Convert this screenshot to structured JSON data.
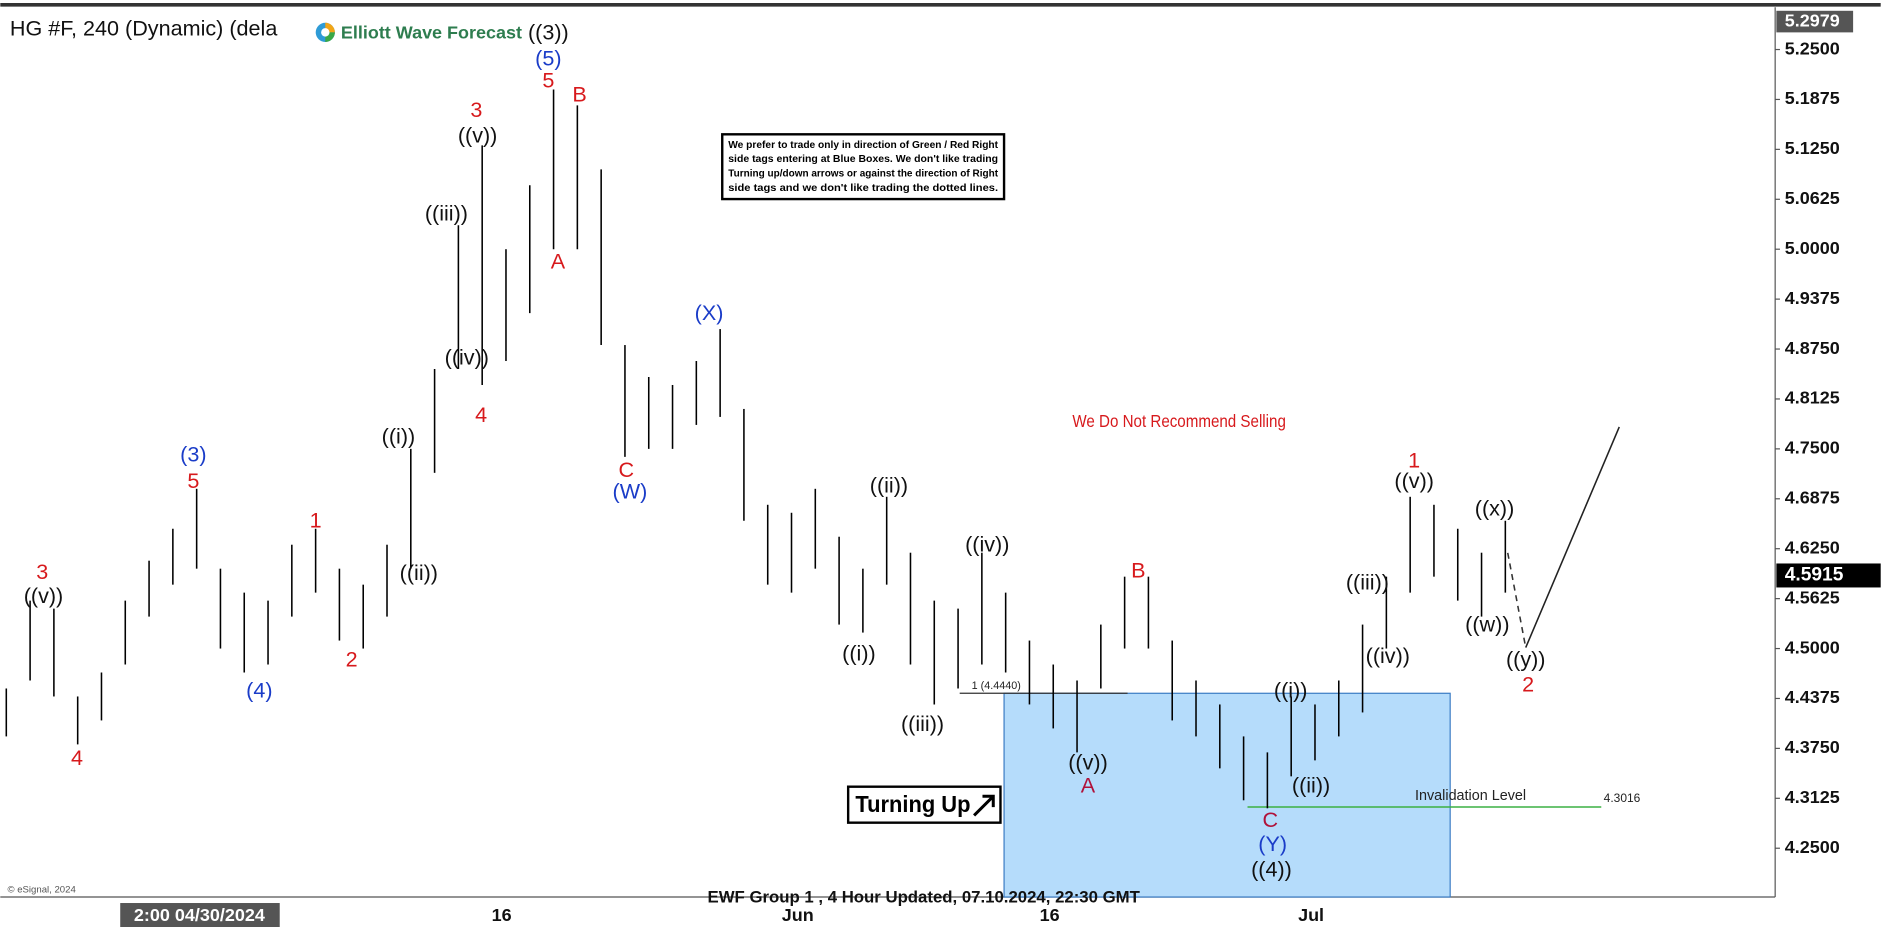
{
  "chart_data": {
    "type": "ohlc",
    "title": "HG #F, 240 (Dynamic) (dela",
    "logo": "Elliott Wave Forecast",
    "footer": "EWF Group 1 , 4 Hour Updated, 07.10.2024, 22:30 GMT",
    "copyright": "© eSignal, 2024",
    "cursor_date": "2:00 04/30/2024",
    "xtick_labels": [
      "16",
      "Jun",
      "16",
      "Jul"
    ],
    "ylim": [
      4.1889,
      5.3
    ],
    "yticks": [
      {
        "value": 5.25,
        "label": "5.2500"
      },
      {
        "value": 5.1875,
        "label": "5.1875"
      },
      {
        "value": 5.125,
        "label": "5.1250"
      },
      {
        "value": 5.0625,
        "label": "5.0625"
      },
      {
        "value": 5.0,
        "label": "5.0000"
      },
      {
        "value": 4.9375,
        "label": "4.9375"
      },
      {
        "value": 4.875,
        "label": "4.8750"
      },
      {
        "value": 4.8125,
        "label": "4.8125"
      },
      {
        "value": 4.75,
        "label": "4.7500"
      },
      {
        "value": 4.6875,
        "label": "4.6875"
      },
      {
        "value": 4.625,
        "label": "4.6250"
      },
      {
        "value": 4.5625,
        "label": "4.5625"
      },
      {
        "value": 4.5,
        "label": "4.5000"
      },
      {
        "value": 4.4375,
        "label": "4.4375"
      },
      {
        "value": 4.375,
        "label": "4.3750"
      },
      {
        "value": 4.3125,
        "label": "4.3125"
      },
      {
        "value": 4.25,
        "label": "4.2500"
      }
    ],
    "bar_color": "#000000",
    "highs": [
      4.45,
      4.56,
      4.55,
      4.44,
      4.47,
      4.56,
      4.61,
      4.65,
      4.7,
      4.6,
      4.57,
      4.56,
      4.63,
      4.65,
      4.6,
      4.58,
      4.63,
      4.75,
      4.85,
      5.03,
      5.13,
      5.0,
      5.08,
      5.2,
      5.18,
      5.1,
      4.88,
      4.84,
      4.83,
      4.86,
      4.9,
      4.8,
      4.68,
      4.67,
      4.7,
      4.64,
      4.6,
      4.69,
      4.62,
      4.56,
      4.55,
      4.62,
      4.57,
      4.51,
      4.48,
      4.46,
      4.53,
      4.59,
      4.59,
      4.51,
      4.46,
      4.43,
      4.39,
      4.37,
      4.44,
      4.43,
      4.46,
      4.53,
      4.59,
      4.69,
      4.68,
      4.65,
      4.62,
      4.66
    ],
    "lows": [
      4.39,
      4.46,
      4.44,
      4.38,
      4.41,
      4.48,
      4.54,
      4.58,
      4.6,
      4.5,
      4.47,
      4.48,
      4.54,
      4.57,
      4.51,
      4.5,
      4.54,
      4.6,
      4.72,
      4.85,
      4.83,
      4.86,
      4.92,
      5.0,
      5.0,
      4.88,
      4.74,
      4.75,
      4.75,
      4.78,
      4.79,
      4.66,
      4.58,
      4.57,
      4.6,
      4.53,
      4.52,
      4.58,
      4.48,
      4.43,
      4.45,
      4.48,
      4.47,
      4.43,
      4.4,
      4.37,
      4.45,
      4.5,
      4.5,
      4.41,
      4.39,
      4.35,
      4.31,
      4.3,
      4.34,
      4.36,
      4.39,
      4.42,
      4.5,
      4.57,
      4.59,
      4.56,
      4.54,
      4.57
    ],
    "high_price": 5.2979,
    "last_price": 4.5915,
    "blue_box": {
      "top": 4.444,
      "label": "1 (4.4440)",
      "color": "#b5dcfb"
    },
    "invalidation": {
      "value": 4.3016,
      "label": "Invalidation Level",
      "color": "#3cb043"
    },
    "note_lines": [
      "We prefer to trade only in direction of Green / Red Right",
      "side tags entering at Blue Boxes. We don't like trading",
      "Turning up/down arrows or against the direction of Right",
      "side tags and we don't like trading the dotted lines."
    ],
    "warning": "We Do Not Recommend Selling",
    "turning_label": "Turning Up",
    "wave_labels": [
      {
        "text": "3",
        "color": "#d7191c"
      },
      {
        "text": "((v))",
        "color": "#111111"
      },
      {
        "text": "4",
        "color": "#d7191c"
      },
      {
        "text": "(3)",
        "color": "#1a3cc8"
      },
      {
        "text": "5",
        "color": "#d7191c"
      },
      {
        "text": "(4)",
        "color": "#1a3cc8"
      },
      {
        "text": "1",
        "color": "#d7191c"
      },
      {
        "text": "2",
        "color": "#d7191c"
      },
      {
        "text": "((i))",
        "color": "#111111"
      },
      {
        "text": "((ii))",
        "color": "#111111"
      },
      {
        "text": "((iii))",
        "color": "#111111"
      },
      {
        "text": "((iv))",
        "color": "#111111"
      },
      {
        "text": "3",
        "color": "#d7191c"
      },
      {
        "text": "((v))",
        "color": "#111111"
      },
      {
        "text": "4",
        "color": "#d7191c"
      },
      {
        "text": "(5)",
        "color": "#1a3cc8"
      },
      {
        "text": "5",
        "color": "#d7191c"
      },
      {
        "text": "((3))",
        "color": "#111111"
      },
      {
        "text": "B",
        "color": "#d7191c"
      },
      {
        "text": "A",
        "color": "#d7191c"
      },
      {
        "text": "C",
        "color": "#d7191c"
      },
      {
        "text": "(W)",
        "color": "#1a3cc8"
      },
      {
        "text": "(X)",
        "color": "#1a3cc8"
      },
      {
        "text": "((ii))",
        "color": "#111111"
      },
      {
        "text": "((i))",
        "color": "#111111"
      },
      {
        "text": "((iii))",
        "color": "#111111"
      },
      {
        "text": "((iv))",
        "color": "#111111"
      },
      {
        "text": "((v))",
        "color": "#111111"
      },
      {
        "text": "A",
        "color": "#b0123a"
      },
      {
        "text": "B",
        "color": "#d7191c"
      },
      {
        "text": "C",
        "color": "#b0123a"
      },
      {
        "text": "(Y)",
        "color": "#1a3cc8"
      },
      {
        "text": "((4))",
        "color": "#111111"
      },
      {
        "text": "((i))",
        "color": "#111111"
      },
      {
        "text": "((ii))",
        "color": "#111111"
      },
      {
        "text": "((iii))",
        "color": "#111111"
      },
      {
        "text": "((iv))",
        "color": "#111111"
      },
      {
        "text": "1",
        "color": "#d7191c"
      },
      {
        "text": "((v))",
        "color": "#111111"
      },
      {
        "text": "((x))",
        "color": "#111111"
      },
      {
        "text": "((w))",
        "color": "#111111"
      },
      {
        "text": "((y))",
        "color": "#111111"
      },
      {
        "text": "2",
        "color": "#d7191c"
      }
    ]
  }
}
